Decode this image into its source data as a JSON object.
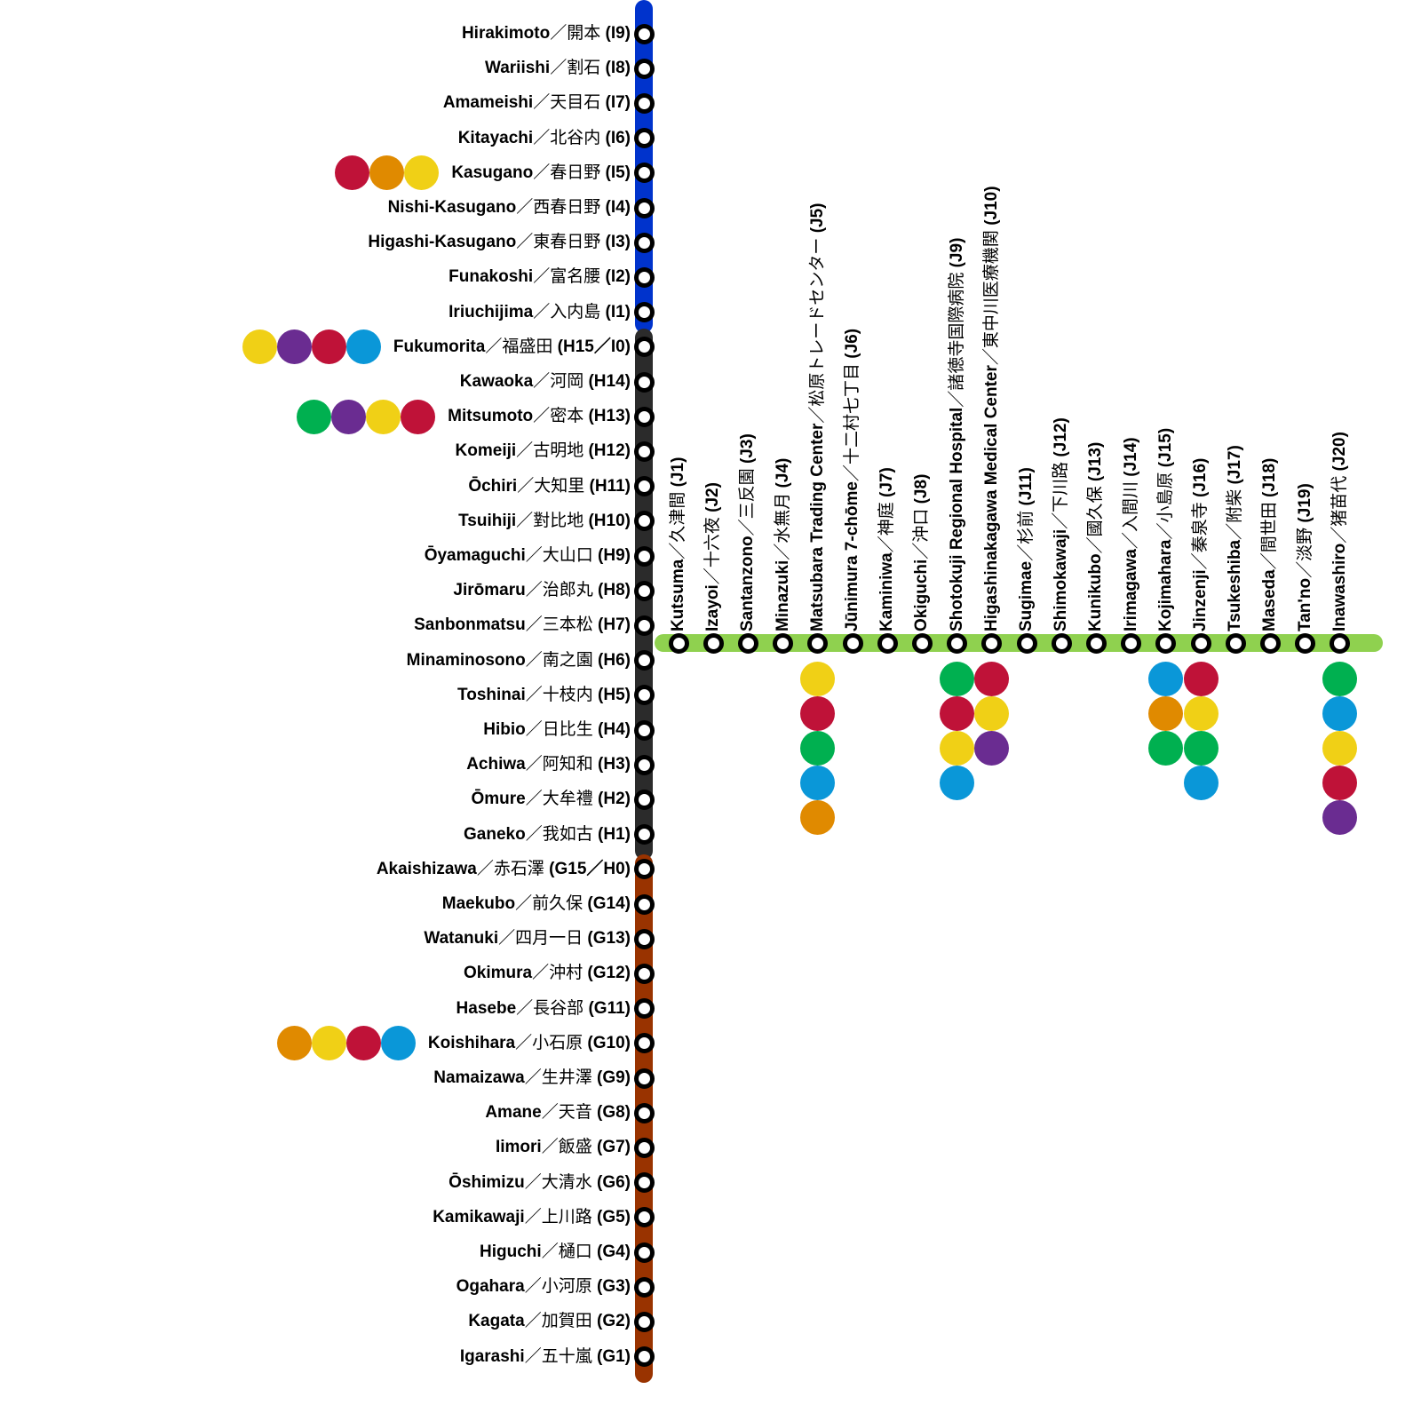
{
  "colors": {
    "line_I": "#0033cc",
    "line_H": "#2b2b2b",
    "line_G": "#993300",
    "line_J": "#8fd14f",
    "red": "#bf1238",
    "orange": "#e08a00",
    "yellow": "#f0d016",
    "purple": "#6a2c91",
    "blue": "#0a97d8",
    "green": "#00b050"
  },
  "separator": "／",
  "vertical_stations": [
    {
      "en": "Hirakimoto",
      "ja": "開本",
      "code": "(I9)",
      "transfers": []
    },
    {
      "en": "Wariishi",
      "ja": "割石",
      "code": "(I8)",
      "transfers": []
    },
    {
      "en": "Amameishi",
      "ja": "天目石",
      "code": "(I7)",
      "transfers": []
    },
    {
      "en": "Kitayachi",
      "ja": "北谷内",
      "code": "(I6)",
      "transfers": []
    },
    {
      "en": "Kasugano",
      "ja": "春日野",
      "code": "(I5)",
      "transfers": [
        "red",
        "orange",
        "yellow"
      ]
    },
    {
      "en": "Nishi-Kasugano",
      "ja": "西春日野",
      "code": "(I4)",
      "transfers": []
    },
    {
      "en": "Higashi-Kasugano",
      "ja": "東春日野",
      "code": "(I3)",
      "transfers": []
    },
    {
      "en": "Funakoshi",
      "ja": "富名腰",
      "code": "(I2)",
      "transfers": []
    },
    {
      "en": "Iriuchijima",
      "ja": "入内島",
      "code": "(I1)",
      "transfers": []
    },
    {
      "en": "Fukumorita",
      "ja": "福盛田",
      "code": "(H15／I0)",
      "transfers": [
        "yellow",
        "purple",
        "red",
        "blue"
      ]
    },
    {
      "en": "Kawaoka",
      "ja": "河岡",
      "code": "(H14)",
      "transfers": []
    },
    {
      "en": "Mitsumoto",
      "ja": "密本",
      "code": "(H13)",
      "transfers": [
        "green",
        "purple",
        "yellow",
        "red"
      ]
    },
    {
      "en": "Komeiji",
      "ja": "古明地",
      "code": "(H12)",
      "transfers": []
    },
    {
      "en": "Ōchiri",
      "ja": "大知里",
      "code": "(H11)",
      "transfers": []
    },
    {
      "en": "Tsuihiji",
      "ja": "對比地",
      "code": "(H10)",
      "transfers": []
    },
    {
      "en": "Ōyamaguchi",
      "ja": "大山口",
      "code": "(H9)",
      "transfers": []
    },
    {
      "en": "Jirōmaru",
      "ja": "治郎丸",
      "code": "(H8)",
      "transfers": []
    },
    {
      "en": "Sanbonmatsu",
      "ja": "三本松",
      "code": "(H7)",
      "transfers": []
    },
    {
      "en": "Minaminosono",
      "ja": "南之園",
      "code": "(H6)",
      "transfers": []
    },
    {
      "en": "Toshinai",
      "ja": "十枝内",
      "code": "(H5)",
      "transfers": []
    },
    {
      "en": "Hibio",
      "ja": "日比生",
      "code": "(H4)",
      "transfers": []
    },
    {
      "en": "Achiwa",
      "ja": "阿知和",
      "code": "(H3)",
      "transfers": []
    },
    {
      "en": "Ōmure",
      "ja": "大牟禮",
      "code": "(H2)",
      "transfers": []
    },
    {
      "en": "Ganeko",
      "ja": "我如古",
      "code": "(H1)",
      "transfers": []
    },
    {
      "en": "Akaishizawa",
      "ja": "赤石澤",
      "code": "(G15／H0)",
      "transfers": []
    },
    {
      "en": "Maekubo",
      "ja": "前久保",
      "code": "(G14)",
      "transfers": []
    },
    {
      "en": "Watanuki",
      "ja": "四月一日",
      "code": "(G13)",
      "transfers": []
    },
    {
      "en": "Okimura",
      "ja": "沖村",
      "code": "(G12)",
      "transfers": []
    },
    {
      "en": "Hasebe",
      "ja": "長谷部",
      "code": "(G11)",
      "transfers": []
    },
    {
      "en": "Koishihara",
      "ja": "小石原",
      "code": "(G10)",
      "transfers": [
        "orange",
        "yellow",
        "red",
        "blue"
      ]
    },
    {
      "en": "Namaizawa",
      "ja": "生井澤",
      "code": "(G9)",
      "transfers": []
    },
    {
      "en": "Amane",
      "ja": "天音",
      "code": "(G8)",
      "transfers": []
    },
    {
      "en": "Iimori",
      "ja": "飯盛",
      "code": "(G7)",
      "transfers": []
    },
    {
      "en": "Ōshimizu",
      "ja": "大清水",
      "code": "(G6)",
      "transfers": []
    },
    {
      "en": "Kamikawaji",
      "ja": "上川路",
      "code": "(G5)",
      "transfers": []
    },
    {
      "en": "Higuchi",
      "ja": "樋口",
      "code": "(G4)",
      "transfers": []
    },
    {
      "en": "Ogahara",
      "ja": "小河原",
      "code": "(G3)",
      "transfers": []
    },
    {
      "en": "Kagata",
      "ja": "加賀田",
      "code": "(G2)",
      "transfers": []
    },
    {
      "en": "Igarashi",
      "ja": "五十嵐",
      "code": "(G1)",
      "transfers": []
    }
  ],
  "horizontal_stations": [
    {
      "en": "Kutsuma",
      "ja": "久津間",
      "code": "(J1)",
      "transfers": []
    },
    {
      "en": "Izayoi",
      "ja": "十六夜",
      "code": "(J2)",
      "transfers": []
    },
    {
      "en": "Santanzono",
      "ja": "三反園",
      "code": "(J3)",
      "transfers": []
    },
    {
      "en": "Minazuki",
      "ja": "水無月",
      "code": "(J4)",
      "transfers": []
    },
    {
      "en": "Matsubara Trading Center",
      "ja": "松原トレードセンター",
      "code": "(J5)",
      "transfers": [
        "yellow",
        "red",
        "green",
        "blue",
        "orange"
      ]
    },
    {
      "en": "Jūnimura 7-chōme",
      "ja": "十二村七丁目",
      "code": "(J6)",
      "transfers": []
    },
    {
      "en": "Kaminiwa",
      "ja": "神庭",
      "code": "(J7)",
      "transfers": []
    },
    {
      "en": "Okiguchi",
      "ja": "沖口",
      "code": "(J8)",
      "transfers": []
    },
    {
      "en": "Shotokuji Regional Hospital",
      "ja": "諸徳寺国際病院",
      "code": "(J9)",
      "transfers": [
        "green",
        "red",
        "yellow",
        "blue"
      ]
    },
    {
      "en": "Higashinakagawa Medical Center",
      "ja": "東中川医療機関",
      "code": "(J10)",
      "transfers": [
        "red",
        "yellow",
        "purple"
      ]
    },
    {
      "en": "Sugimae",
      "ja": "杉前",
      "code": "(J11)",
      "transfers": []
    },
    {
      "en": "Shimokawaji",
      "ja": "下川路",
      "code": "(J12)",
      "transfers": []
    },
    {
      "en": "Kunikubo",
      "ja": "國久保",
      "code": "(J13)",
      "transfers": []
    },
    {
      "en": "Irimagawa",
      "ja": "入間川",
      "code": "(J14)",
      "transfers": []
    },
    {
      "en": "Kojimahara",
      "ja": "小島原",
      "code": "(J15)",
      "transfers": [
        "blue",
        "orange",
        "green"
      ]
    },
    {
      "en": "Jinzenji",
      "ja": "秦泉寺",
      "code": "(J16)",
      "transfers": [
        "red",
        "yellow",
        "green",
        "blue"
      ]
    },
    {
      "en": "Tsukeshiba",
      "ja": "附柴",
      "code": "(J17)",
      "transfers": []
    },
    {
      "en": "Maseda",
      "ja": "間世田",
      "code": "(J18)",
      "transfers": []
    },
    {
      "en": "Tan'no",
      "ja": "淡野",
      "code": "(J19)",
      "transfers": []
    },
    {
      "en": "Inawashiro",
      "ja": "猪苗代",
      "code": "(J20)",
      "transfers": [
        "green",
        "blue",
        "yellow",
        "red",
        "purple"
      ]
    }
  ]
}
